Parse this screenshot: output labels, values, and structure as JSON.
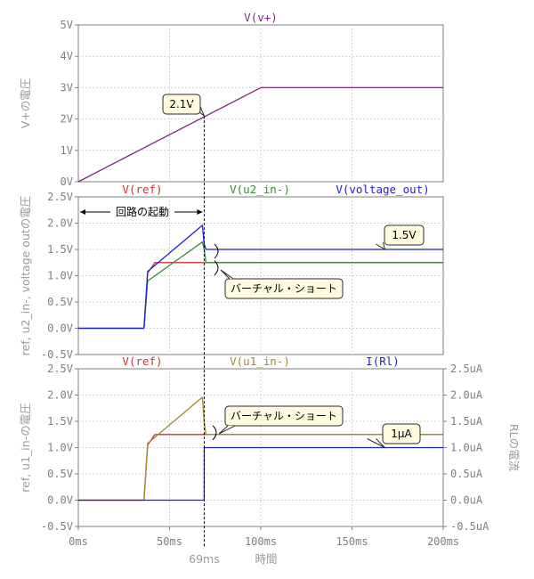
{
  "chart_data": [
    {
      "type": "line",
      "title": "V(v+)",
      "ylabel": "V+の電圧",
      "xlabel": "",
      "xlim": [
        0,
        200
      ],
      "ylim": [
        0,
        5
      ],
      "y_ticks": [
        "0V",
        "1V",
        "2V",
        "3V",
        "4V",
        "5V"
      ],
      "series": [
        {
          "name": "V(v+)",
          "color": "#7b2a7b",
          "x": [
            0,
            100,
            200
          ],
          "y": [
            0,
            3,
            3
          ]
        }
      ],
      "annotations": [
        {
          "text": "2.1V",
          "x": 69,
          "y": 2.1
        }
      ]
    },
    {
      "type": "line",
      "titles": [
        "V(ref)",
        "V(u2_in-)",
        "V(voltage_out)"
      ],
      "ylabel": "ref, u2_in-, voltage outの電圧",
      "xlim": [
        0,
        200
      ],
      "ylim": [
        -0.5,
        2.5
      ],
      "y_ticks": [
        "-0.5V",
        "0.0V",
        "0.5V",
        "1.0V",
        "1.5V",
        "2.0V",
        "2.5V"
      ],
      "series": [
        {
          "name": "V(ref)",
          "color": "#cc3333",
          "x": [
            0,
            36,
            38,
            42,
            200
          ],
          "y": [
            0,
            0,
            1.05,
            1.25,
            1.25
          ]
        },
        {
          "name": "V(u2_in-)",
          "color": "#3a8c3a",
          "x": [
            0,
            36,
            38,
            68,
            69,
            70,
            200
          ],
          "y": [
            0,
            0,
            0.9,
            1.64,
            1.5,
            1.25,
            1.25
          ]
        },
        {
          "name": "V(voltage_out)",
          "color": "#1f1fcc",
          "x": [
            0,
            36,
            38,
            68,
            69,
            70,
            200
          ],
          "y": [
            0,
            0,
            1.08,
            1.96,
            1.6,
            1.5,
            1.5
          ]
        }
      ],
      "annotations": [
        {
          "text": "回路の起動",
          "x_from": 0,
          "x_to": 69
        },
        {
          "text": "1.5V",
          "x": 169,
          "y": 1.5
        },
        {
          "text": "バーチャル・ショート",
          "x": 72,
          "y": 1.25
        }
      ]
    },
    {
      "type": "line",
      "titles": [
        "V(ref)",
        "V(u1_in-)",
        "I(Rl)"
      ],
      "ylabel": "ref, u1_in-の電圧",
      "y2label": "RLの電流",
      "xlabel": "時間",
      "xlim": [
        0,
        200
      ],
      "ylim": [
        -0.5,
        2.5
      ],
      "y2lim": [
        -0.5,
        2.5
      ],
      "x_ticks": [
        "0ms",
        "50ms",
        "100ms",
        "150ms",
        "200ms"
      ],
      "y_ticks": [
        "-0.5V",
        "0.0V",
        "0.5V",
        "1.0V",
        "1.5V",
        "2.0V",
        "2.5V"
      ],
      "y2_ticks": [
        "-0.5uA",
        "0.0uA",
        "0.5uA",
        "1.0uA",
        "1.5uA",
        "2.0uA",
        "2.5uA"
      ],
      "series": [
        {
          "name": "V(ref)",
          "color": "#cc3333",
          "axis": "left",
          "x": [
            0,
            36,
            38,
            42,
            200
          ],
          "y": [
            0,
            0,
            1.05,
            1.25,
            1.25
          ]
        },
        {
          "name": "V(u1_in-)",
          "color": "#a08a2a",
          "axis": "left",
          "x": [
            0,
            36,
            38,
            68,
            69,
            70,
            200
          ],
          "y": [
            0,
            0,
            1.08,
            1.96,
            1.5,
            1.25,
            1.25
          ]
        },
        {
          "name": "I(Rl)",
          "color": "#1f1fcc",
          "axis": "right",
          "x": [
            0,
            69,
            69.01,
            200
          ],
          "y": [
            0,
            0,
            1.0,
            1.0
          ]
        }
      ],
      "annotations": [
        {
          "text": "バーチャル・ショート",
          "x": 72,
          "y": 1.25
        },
        {
          "text": "1μA",
          "x": 169,
          "y": 1.0
        },
        {
          "text": "69ms",
          "x": 69
        }
      ]
    }
  ]
}
